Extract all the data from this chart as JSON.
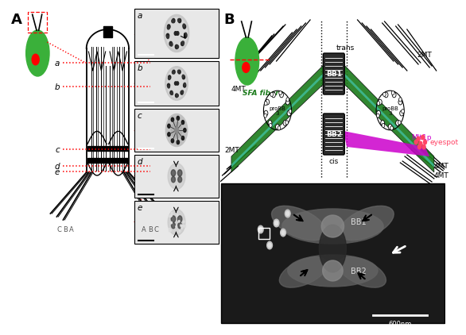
{
  "background_color": "#ffffff",
  "panel_A_label": "A",
  "panel_B_label": "B",
  "section_labels": [
    "a",
    "b",
    "c",
    "d",
    "e"
  ],
  "CBA_labels": [
    "C",
    "B",
    "A",
    "A",
    "B",
    "C"
  ],
  "BB_labels": [
    "BB1",
    "BB2"
  ],
  "trans_label": "trans",
  "cis_label": "cis",
  "sfa_label": "SFA fibers",
  "probb_label": "proBB\n3",
  "mlt_label": "Mlt1p",
  "eyespot_label": "eyespot",
  "mt_labels": [
    "4MT",
    "2MT",
    "2MT",
    "4MT"
  ],
  "scale_label": "600nm",
  "green_cell": "#3ab03a",
  "dark_green_sfa": "#1a7a1a",
  "teal_inner": "#40c0a0",
  "magenta_mlt": "#cc00cc",
  "pink_eyespot": "#ff4466",
  "red_line": "#ff0000",
  "gray_bb": "#2a2a2a",
  "em_bg_dark": "#1a1a1a",
  "em_gray_mid": "#606060",
  "em_gray_light": "#909090",
  "em_gray_lighter": "#b0b0b0"
}
